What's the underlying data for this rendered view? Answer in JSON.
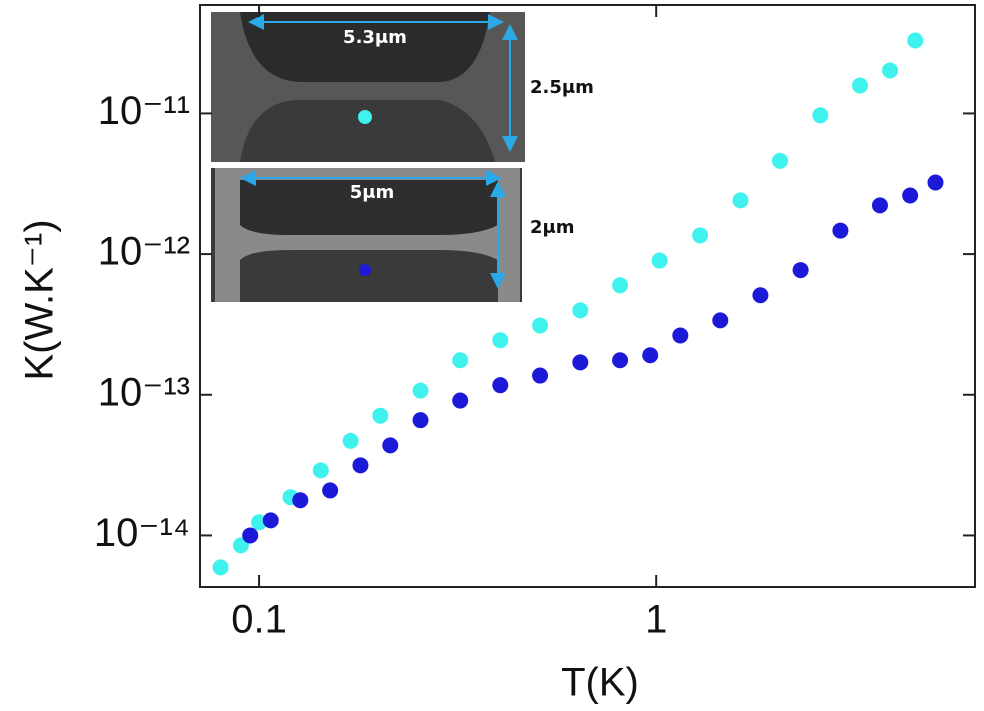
{
  "chart_data": {
    "type": "scatter",
    "xlabel": "T(K)",
    "ylabel": "K(W.K⁻¹)",
    "xscale": "log",
    "yscale": "log",
    "xlim": [
      0.071,
      6.35
    ],
    "ylim": [
      4.3e-15,
      5.9e-11
    ],
    "xticks": [
      0.1,
      1
    ],
    "yticks": [
      {
        "value": 1e-14,
        "label": "10⁻¹⁴"
      },
      {
        "value": 1e-13,
        "label": "10⁻¹³"
      },
      {
        "value": 1e-12,
        "label": "10⁻¹²"
      },
      {
        "value": 1e-11,
        "label": "10⁻¹¹"
      }
    ],
    "annotations": [
      "5.3μm",
      "2.5μm",
      "5μm",
      "2μm"
    ],
    "series": [
      {
        "color": "#3ff2ee",
        "x": [
          0.08,
          0.09,
          0.1,
          0.12,
          0.143,
          0.17,
          0.202,
          0.255,
          0.321,
          0.405,
          0.51,
          0.644,
          0.811,
          1.02,
          1.29,
          1.63,
          2.05,
          2.59,
          3.26,
          3.88,
          4.49
        ],
        "values": [
          5.93e-15,
          8.5e-15,
          1.24e-14,
          1.87e-14,
          2.9e-14,
          4.7e-14,
          7.1e-14,
          1.07e-13,
          1.76e-13,
          2.44e-13,
          3.11e-13,
          3.98e-13,
          6e-13,
          9e-13,
          1.36e-12,
          2.41e-12,
          4.6e-12,
          9.7e-12,
          1.58e-11,
          2.02e-11,
          3.3e-11
        ]
      },
      {
        "color": "#1c1ad8",
        "x": [
          0.095,
          0.107,
          0.127,
          0.151,
          0.18,
          0.214,
          0.255,
          0.321,
          0.405,
          0.51,
          0.644,
          0.811,
          0.966,
          1.15,
          1.45,
          1.83,
          2.31,
          2.91,
          3.66,
          4.36,
          5.05
        ],
        "values": [
          1e-14,
          1.28e-14,
          1.78e-14,
          2.09e-14,
          3.15e-14,
          4.37e-14,
          6.6e-14,
          9.1e-14,
          1.17e-13,
          1.37e-13,
          1.7e-13,
          1.76e-13,
          1.91e-13,
          2.64e-13,
          3.38e-13,
          5.1e-13,
          7.7e-13,
          1.47e-12,
          2.22e-12,
          2.61e-12,
          3.23e-12
        ]
      }
    ]
  }
}
